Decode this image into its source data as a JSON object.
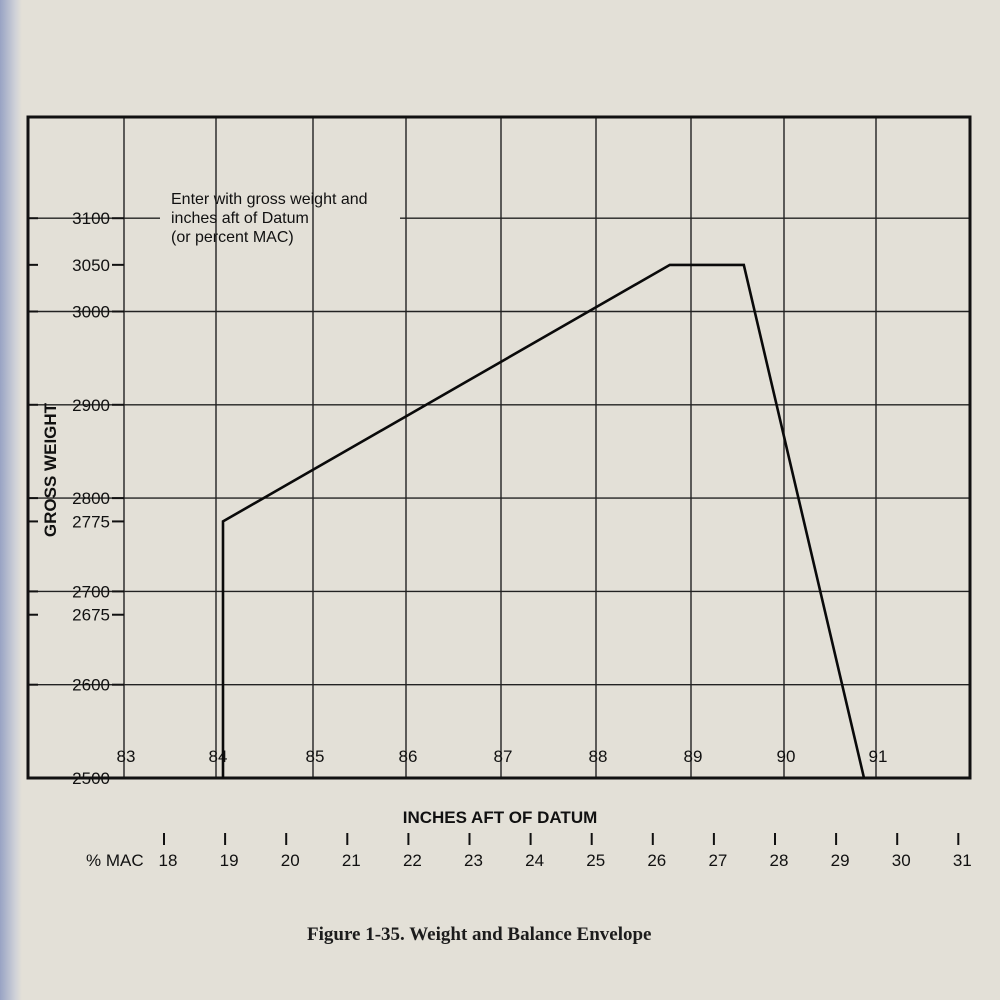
{
  "figure_caption": "Figure 1-35.  Weight and Balance Envelope",
  "chart_data": {
    "type": "line",
    "ylabel": "GROSS WEIGHT",
    "xlabel": "INCHES AFT OF DATUM",
    "secondary_axis_label": "% MAC",
    "annotation": [
      "Enter with gross weight and",
      "inches aft of Datum",
      "(or percent MAC)"
    ],
    "xlim": [
      83,
      91.8
    ],
    "ylim": [
      2500,
      3150
    ],
    "x_ticks": [
      "83",
      "84",
      "85",
      "86",
      "87",
      "88",
      "89",
      "90",
      "91"
    ],
    "y_ticks": [
      "2500",
      "2600",
      "2675",
      "2700",
      "2775",
      "2800",
      "2900",
      "3000",
      "3050",
      "3100"
    ],
    "mac_ticks": [
      18,
      19,
      20,
      21,
      22,
      23,
      24,
      25,
      26,
      27,
      28,
      29,
      30,
      31
    ],
    "grid": true,
    "series": [
      {
        "x": [
          84.07,
          84.07,
          88.9,
          89.7,
          91.0,
          91.0
        ],
        "y": [
          2500,
          2775,
          3050,
          3050,
          2500,
          2500
        ]
      }
    ]
  }
}
